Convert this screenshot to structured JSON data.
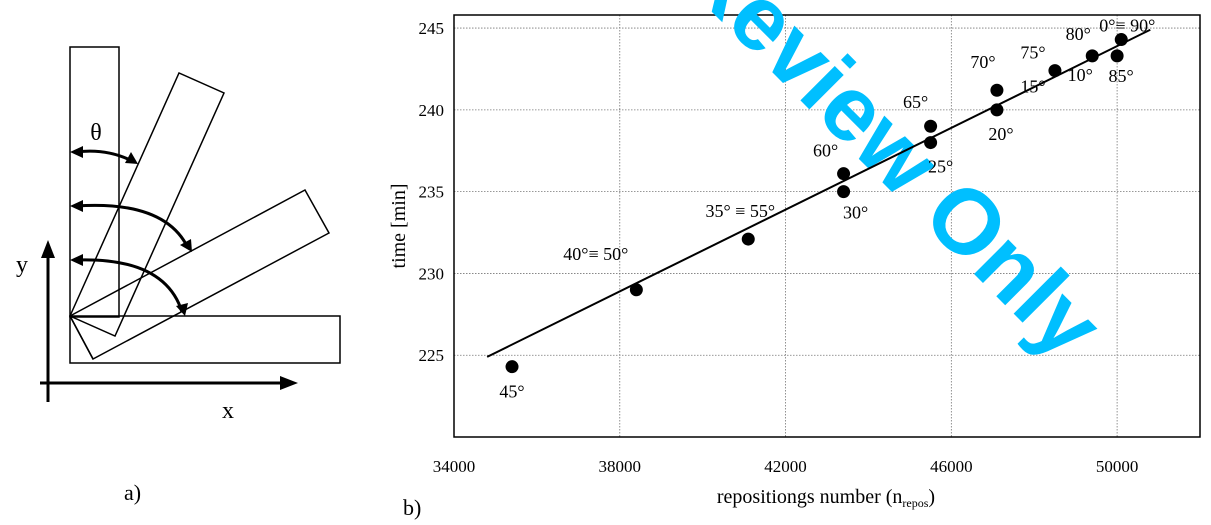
{
  "panels": {
    "a": {
      "label": "a)",
      "angle_label": "θ",
      "x_axis_label": "x",
      "y_axis_label": "y"
    },
    "b": {
      "label": "b)"
    }
  },
  "watermark": {
    "text": "Review Only",
    "color": "#00bfff"
  },
  "chart_data": {
    "type": "scatter",
    "title": "",
    "xlabel": "repositiongs number (n",
    "xlabel_sub": "repos",
    "xlabel_end": ")",
    "ylabel": "time [min]",
    "xlim": [
      34000,
      52000
    ],
    "ylim": [
      220,
      245.8
    ],
    "x_ticks": [
      34000,
      38000,
      42000,
      46000,
      50000
    ],
    "y_ticks": [
      225,
      230,
      235,
      240,
      245
    ],
    "grid": true,
    "series": [
      {
        "points": [
          {
            "x": 35400,
            "y": 224.3,
            "label": "45°"
          },
          {
            "x": 38400,
            "y": 229.0,
            "label": "40°≡  50°"
          },
          {
            "x": 41100,
            "y": 232.1,
            "label": "35° ≡ 55°"
          },
          {
            "x": 43400,
            "y": 235.0,
            "label": "30°"
          },
          {
            "x": 43400,
            "y": 236.1,
            "label": "60°"
          },
          {
            "x": 45500,
            "y": 238.0,
            "label": "25°"
          },
          {
            "x": 45500,
            "y": 239.0,
            "label": "65°"
          },
          {
            "x": 47100,
            "y": 240.0,
            "label": "20°"
          },
          {
            "x": 47100,
            "y": 241.2,
            "label": "70°"
          },
          {
            "x": 48500,
            "y": 242.4,
            "label": "75°"
          },
          {
            "x": 48500,
            "y": 242.4,
            "label": "15°"
          },
          {
            "x": 49400,
            "y": 243.3,
            "label": "80°"
          },
          {
            "x": 49400,
            "y": 243.3,
            "label": "10°"
          },
          {
            "x": 50000,
            "y": 243.3,
            "label": "85°"
          },
          {
            "x": 50100,
            "y": 244.3,
            "label": "0°≡ 90°"
          }
        ]
      }
    ],
    "fit_line": {
      "x": [
        34800,
        50800
      ],
      "y": [
        224.9,
        244.9
      ]
    }
  }
}
